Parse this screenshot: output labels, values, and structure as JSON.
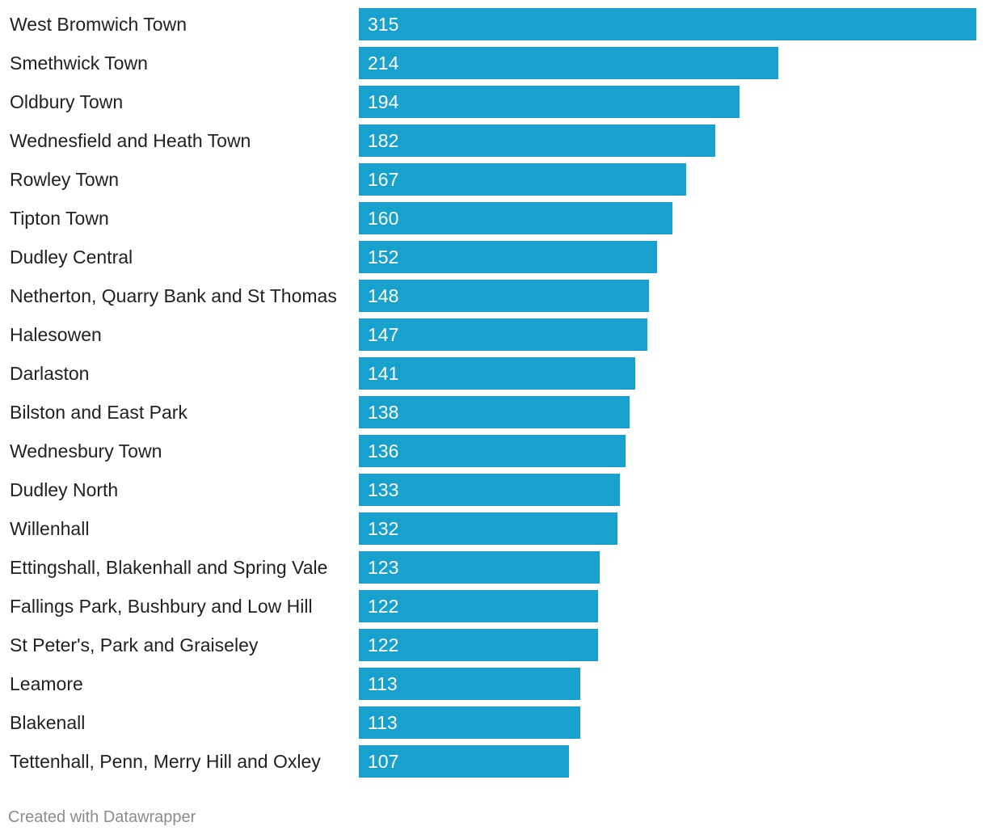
{
  "chart_data": {
    "type": "bar",
    "orientation": "horizontal",
    "categories": [
      "West Bromwich Town",
      "Smethwick Town",
      "Oldbury Town",
      "Wednesfield and Heath Town",
      "Rowley Town",
      "Tipton Town",
      "Dudley Central",
      "Netherton, Quarry Bank and St Thomas",
      "Halesowen",
      "Darlaston",
      "Bilston and East Park",
      "Wednesbury Town",
      "Dudley North",
      "Willenhall",
      "Ettingshall, Blakenhall and Spring Vale",
      "Fallings Park, Bushbury and Low Hill",
      "St Peter's, Park and Graiseley",
      "Leamore",
      "Blakenall",
      "Tettenhall, Penn, Merry Hill and Oxley"
    ],
    "values": [
      315,
      214,
      194,
      182,
      167,
      160,
      152,
      148,
      147,
      141,
      138,
      136,
      133,
      132,
      123,
      122,
      122,
      113,
      113,
      107
    ],
    "xlim": [
      0,
      315
    ],
    "bar_color": "#18a1cd",
    "value_label_color": "#ffffff",
    "label_color": "#222222"
  },
  "footer": {
    "credit": "Created with Datawrapper"
  }
}
